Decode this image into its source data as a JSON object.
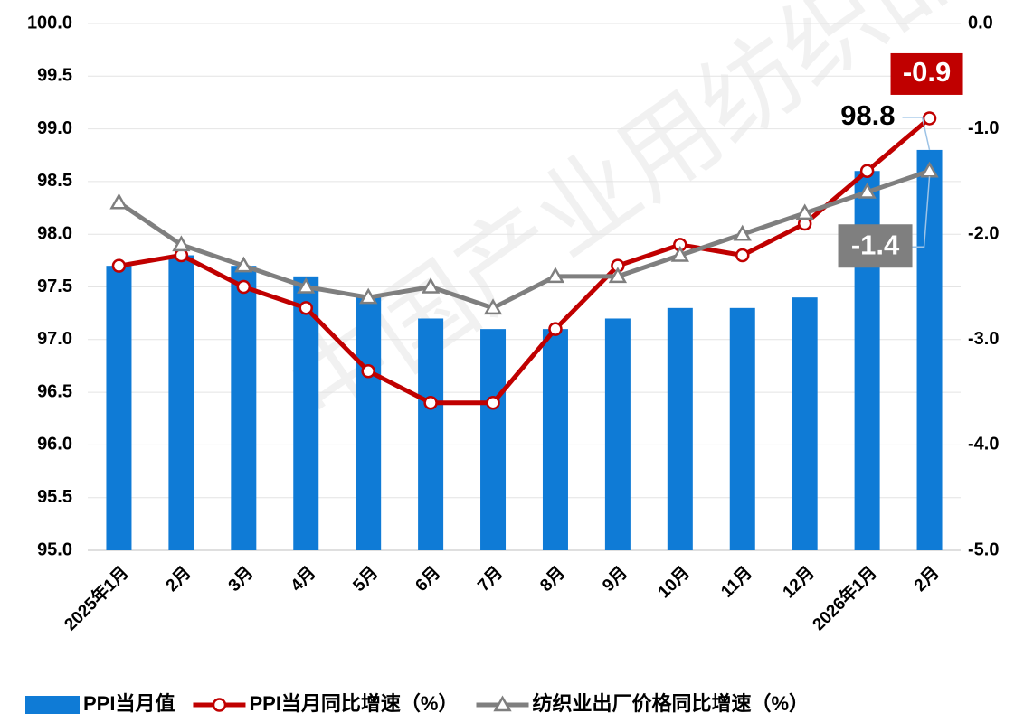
{
  "chart_data": {
    "type": "bar_line",
    "watermark": "中国产业用纺织品",
    "categories": [
      "2025年1月",
      "2月",
      "3月",
      "4月",
      "5月",
      "6月",
      "7月",
      "8月",
      "9月",
      "10月",
      "11月",
      "12月",
      "2026年1月",
      "2月"
    ],
    "series": [
      {
        "name": "PPI当月值",
        "type": "bar",
        "color": "#0f7bd6",
        "axis": "y",
        "values": [
          97.7,
          97.8,
          97.7,
          97.6,
          97.4,
          97.2,
          97.1,
          97.1,
          97.2,
          97.3,
          97.3,
          97.4,
          98.6,
          98.8
        ],
        "value_labels": [
          null,
          null,
          null,
          null,
          null,
          null,
          null,
          null,
          null,
          null,
          null,
          null,
          null,
          "98.8"
        ]
      },
      {
        "name": "PPI当月同比增速（%）",
        "type": "line",
        "marker": "circle",
        "color": "#c00000",
        "axis": "y2",
        "values": [
          -2.3,
          -2.2,
          -2.5,
          -2.7,
          -3.3,
          -3.6,
          -3.6,
          -2.9,
          -2.3,
          -2.1,
          -2.2,
          -1.9,
          -1.4,
          -0.9
        ],
        "value_labels": [
          null,
          null,
          null,
          null,
          null,
          null,
          null,
          null,
          null,
          null,
          null,
          null,
          null,
          "-0.9"
        ]
      },
      {
        "name": "纺织业出厂价格同比增速（%）",
        "type": "line",
        "marker": "triangle",
        "color": "#7f7f7f",
        "axis": "y2",
        "values": [
          -1.7,
          -2.1,
          -2.3,
          -2.5,
          -2.6,
          -2.5,
          -2.7,
          -2.4,
          -2.4,
          -2.2,
          -2.0,
          -1.8,
          -1.6,
          -1.4
        ],
        "value_labels": [
          null,
          null,
          null,
          null,
          null,
          null,
          null,
          null,
          null,
          null,
          null,
          null,
          null,
          "-1.4"
        ]
      }
    ],
    "ylim": [
      95,
      100
    ],
    "yticks": [
      {
        "value": 95,
        "label": "95.0"
      },
      95.5,
      {
        "value": 96,
        "label": "96.0"
      },
      96.5,
      {
        "value": 97,
        "label": "97.0"
      },
      97.5,
      {
        "value": 98,
        "label": "98.0"
      },
      98.5,
      {
        "value": 99,
        "label": "99.0"
      },
      99.5,
      {
        "value": 100,
        "label": "100.0"
      }
    ],
    "y2lim": [
      -5,
      0
    ],
    "y2ticks": [
      {
        "value": -5,
        "label": "-5.0"
      },
      {
        "value": -4,
        "label": "-4.0"
      },
      {
        "value": -3,
        "label": "-3.0"
      },
      {
        "value": -2,
        "label": "-2.0"
      },
      {
        "value": -1,
        "label": "-1.0"
      },
      {
        "value": 0,
        "label": "0.0"
      }
    ],
    "grid": true,
    "legend": "bottom"
  }
}
